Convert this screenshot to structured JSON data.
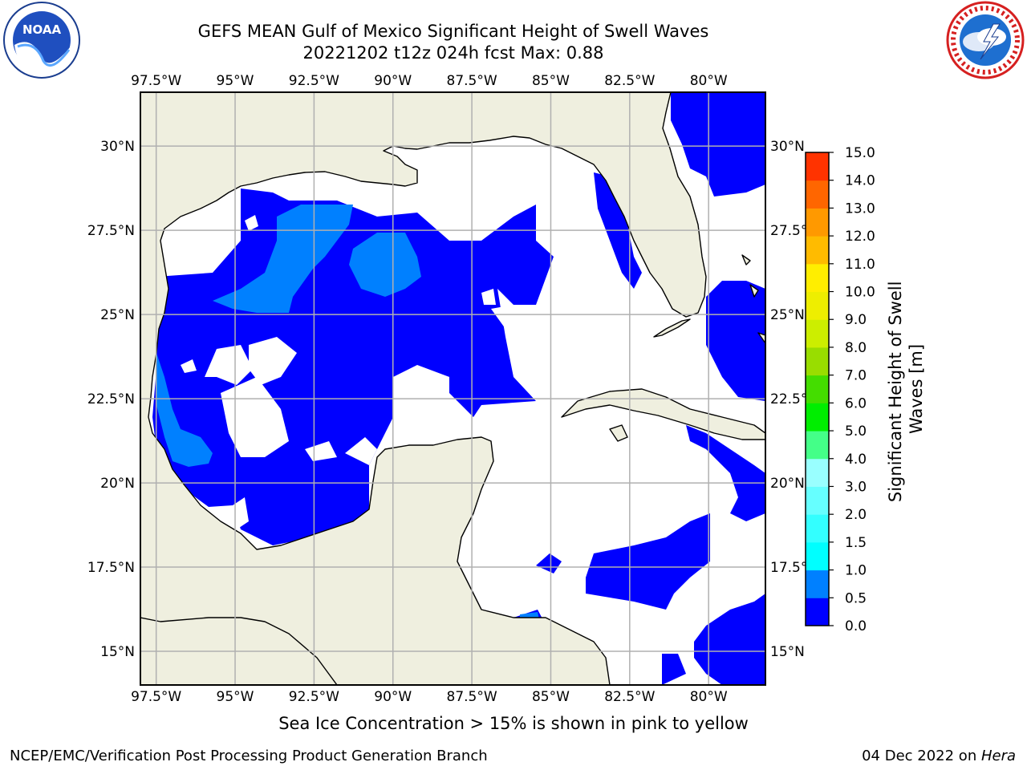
{
  "title_line1": "GEFS MEAN Gulf of Mexico Significant Height of Swell Waves",
  "title_line2": "20221202 t12z 024h fcst   Max: 0.88",
  "lon_ticks": [
    "97.5°W",
    "95°W",
    "92.5°W",
    "90°W",
    "87.5°W",
    "85°W",
    "82.5°W",
    "80°W"
  ],
  "lon_values": [
    -97.5,
    -95,
    -92.5,
    -90,
    -87.5,
    -85,
    -82.5,
    -80
  ],
  "lat_ticks": [
    "30°N",
    "27.5°N",
    "25°N",
    "22.5°N",
    "20°N",
    "17.5°N",
    "15°N"
  ],
  "lat_values": [
    30,
    27.5,
    25,
    22.5,
    20,
    17.5,
    15
  ],
  "extent": {
    "lon": [
      -98,
      -78.2
    ],
    "lat": [
      14,
      31.6
    ]
  },
  "colorbar": {
    "label_line1": "Significant Height of Swell",
    "label_line2": "Waves [m]",
    "ticks": [
      "0.0",
      "0.5",
      "1.0",
      "1.5",
      "2.0",
      "3.0",
      "4.0",
      "5.0",
      "6.0",
      "7.0",
      "8.0",
      "9.0",
      "10.0",
      "11.0",
      "12.0",
      "13.0",
      "14.0",
      "15.0"
    ],
    "colors": [
      "#0000ff",
      "#0080ff",
      "#00ffff",
      "#33ffff",
      "#66ffff",
      "#99ffff",
      "#44ff88",
      "#00ee00",
      "#44dd00",
      "#99dd00",
      "#ccee00",
      "#eeee00",
      "#ffee00",
      "#ffbb00",
      "#ff9900",
      "#ff6600",
      "#ff3300",
      "#ff0000"
    ]
  },
  "colors": {
    "land": "#efefdf",
    "ocean_low": "#0000ff",
    "ocean_mid": "#0080ff",
    "grid": "#b0b0b0"
  },
  "logos": {
    "left": "noaa-logo",
    "left_text": "NOAA",
    "right": "nws-logo"
  },
  "bottom_note": "Sea Ice Concentration > 15% is shown in pink to yellow",
  "footer_left": "NCEP/EMC/Verification Post Processing Product Generation Branch",
  "footer_date": "04 Dec 2022 on ",
  "footer_host": "Hera"
}
